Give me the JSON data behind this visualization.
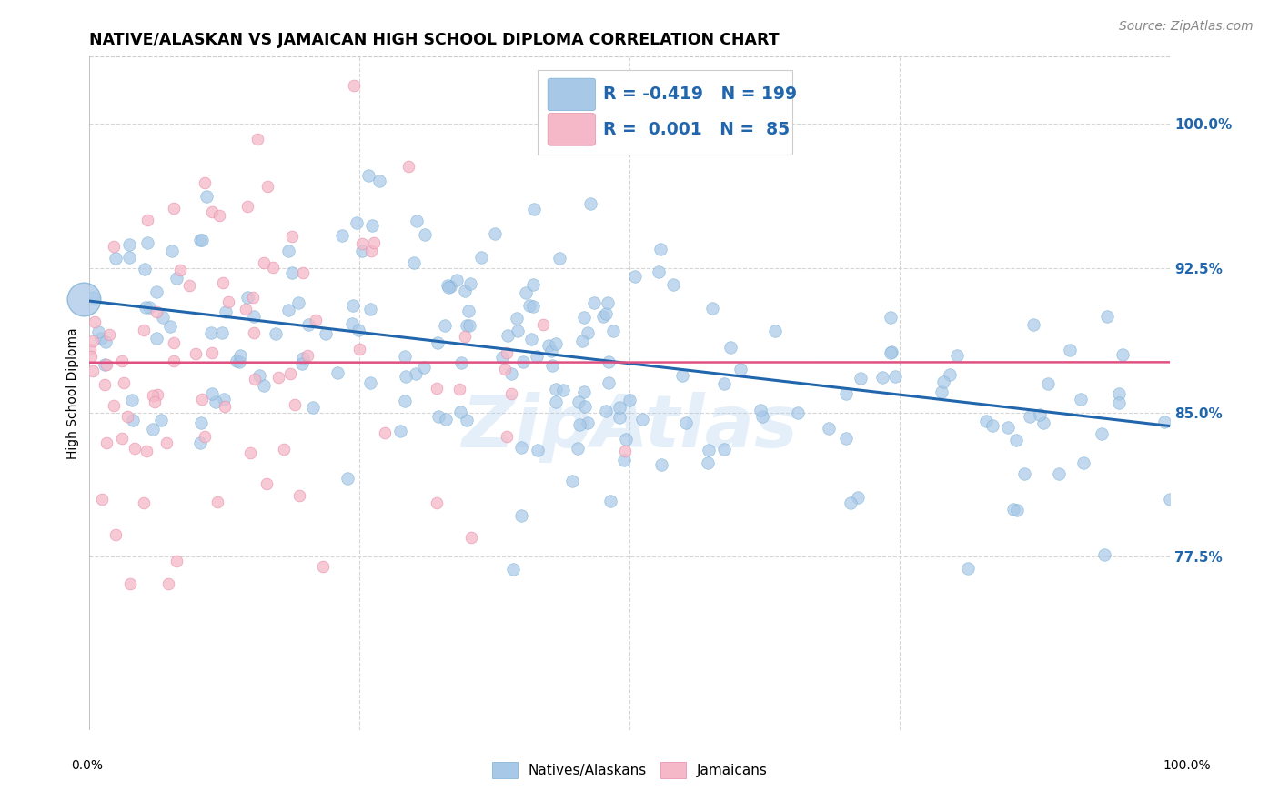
{
  "title": "NATIVE/ALASKAN VS JAMAICAN HIGH SCHOOL DIPLOMA CORRELATION CHART",
  "source": "Source: ZipAtlas.com",
  "ylabel": "High School Diploma",
  "yticks": [
    0.775,
    0.85,
    0.925,
    1.0
  ],
  "ytick_labels": [
    "77.5%",
    "85.0%",
    "92.5%",
    "100.0%"
  ],
  "xlim": [
    0.0,
    1.0
  ],
  "ylim": [
    0.685,
    1.035
  ],
  "legend_blue_label": "Natives/Alaskans",
  "legend_pink_label": "Jamaicans",
  "blue_color": "#a8c8e8",
  "blue_edge_color": "#7aafd4",
  "blue_line_color": "#2166ac",
  "pink_color": "#f4b8c8",
  "pink_edge_color": "#e88aaa",
  "pink_line_color": "#e05080",
  "watermark": "ZipAtlas",
  "background_color": "#ffffff",
  "grid_color": "#cccccc",
  "blue_r": -0.419,
  "blue_n": 199,
  "pink_r": 0.001,
  "pink_n": 85,
  "blue_intercept": 0.908,
  "blue_slope": -0.065,
  "pink_intercept": 0.876,
  "pink_slope": 0.0002,
  "title_fontsize": 12.5,
  "axis_fontsize": 10,
  "legend_fontsize": 14,
  "source_fontsize": 10
}
